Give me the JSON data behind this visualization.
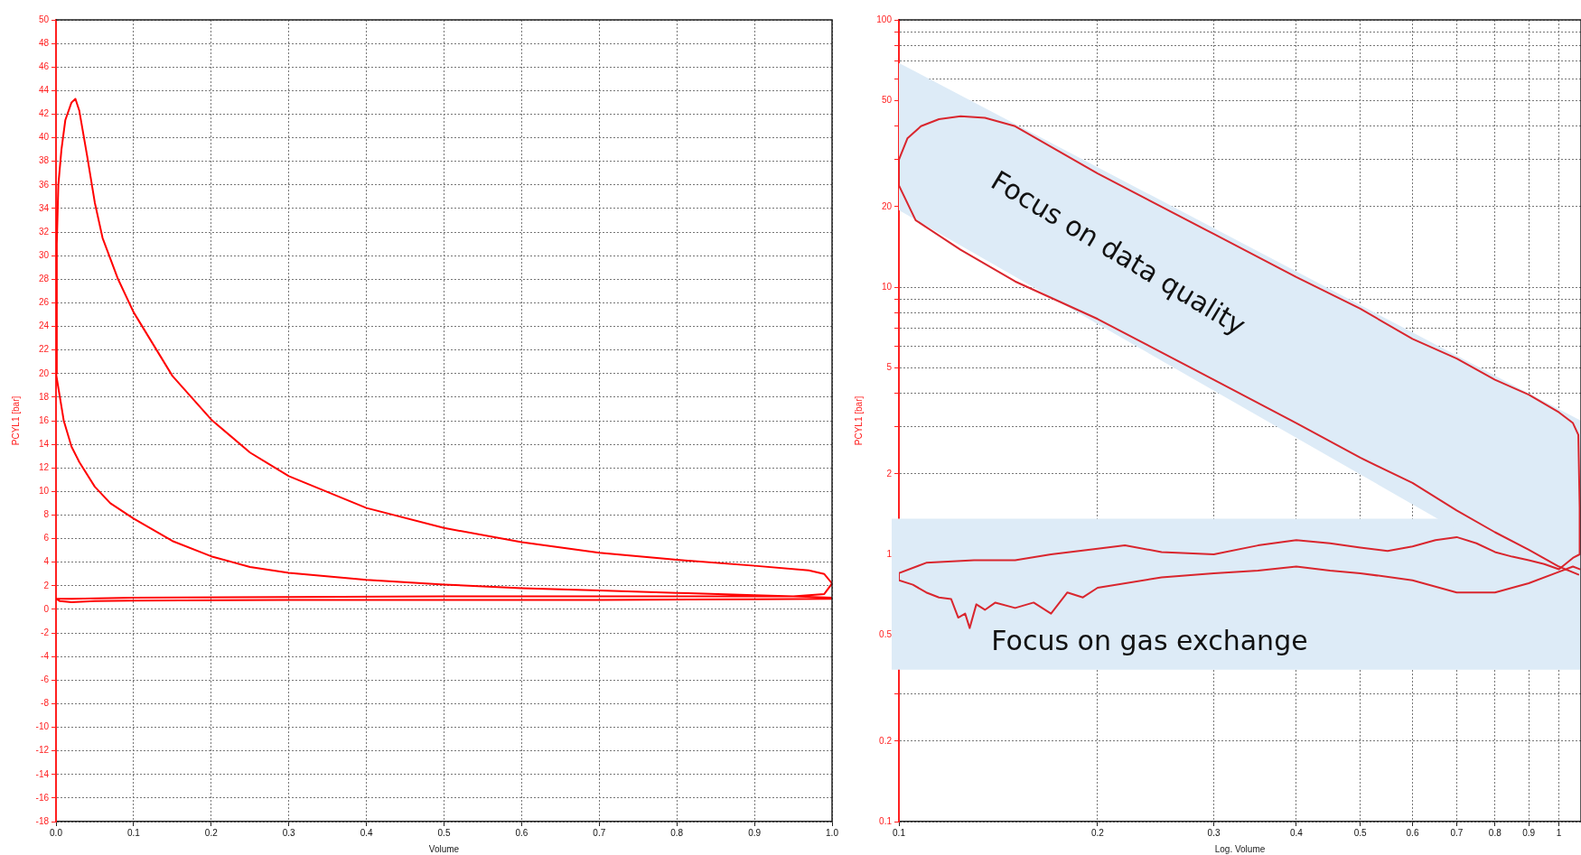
{
  "chart_data": [
    {
      "type": "line",
      "xlabel": "Volume",
      "ylabel": "PCYL1 [bar]",
      "xlim": [
        0,
        1
      ],
      "xticks": [
        {
          "value": 0,
          "label": "0.0"
        },
        0.1,
        0.2,
        0.3,
        0.4,
        0.5,
        0.6,
        0.7,
        0.8,
        0.9,
        {
          "value": 1,
          "label": "1.0"
        }
      ],
      "ylim": [
        -18,
        50
      ],
      "yticks": [
        -18,
        -16,
        -14,
        -12,
        -10,
        -8,
        -6,
        -4,
        -2,
        0,
        2,
        4,
        6,
        8,
        10,
        12,
        14,
        16,
        18,
        20,
        22,
        24,
        26,
        28,
        30,
        32,
        34,
        36,
        38,
        40,
        42,
        44,
        46,
        48,
        50
      ],
      "grid": true,
      "line_style": "solid",
      "series": [
        {
          "color": "#ff0000",
          "x": [
            1.0,
            0.95,
            0.9,
            0.8,
            0.7,
            0.6,
            0.5,
            0.4,
            0.3,
            0.25,
            0.2,
            0.15,
            0.1,
            0.07,
            0.05,
            0.03,
            0.02,
            0.01,
            0.005,
            0,
            0.001,
            0.003,
            0.007,
            0.012,
            0.02,
            0.025,
            0.03,
            0.04,
            0.05,
            0.06,
            0.08,
            0.1,
            0.15,
            0.2,
            0.25,
            0.3,
            0.4,
            0.5,
            0.6,
            0.7,
            0.8,
            0.9,
            0.97,
            0.99,
            1.0,
            0.99,
            0.95,
            0.9,
            0.7,
            0.5,
            0.3,
            0.1,
            0.02,
            0,
            0.005,
            0.02,
            0.05,
            0.1,
            0.3,
            0.5,
            0.7,
            0.9,
            1.0
          ],
          "values": [
            1.0,
            1.1,
            1.2,
            1.4,
            1.6,
            1.8,
            2.1,
            2.5,
            3.1,
            3.6,
            4.5,
            5.8,
            7.7,
            9,
            10.4,
            12.5,
            13.8,
            16,
            18,
            20,
            31,
            36,
            39,
            41.5,
            43,
            43.3,
            42.3,
            38.5,
            34.5,
            31.5,
            28,
            25.2,
            19.8,
            16.1,
            13.3,
            11.3,
            8.6,
            6.9,
            5.7,
            4.8,
            4.2,
            3.7,
            3.3,
            3.0,
            2.2,
            1.3,
            1.1,
            1.1,
            1.1,
            1.1,
            1.05,
            1.0,
            0.9,
            0.9,
            0.7,
            0.6,
            0.7,
            0.75,
            0.8,
            0.8,
            0.8,
            0.85,
            0.9
          ]
        }
      ]
    },
    {
      "type": "line",
      "xlabel": "Log. Volume",
      "ylabel": "PCYL1 [bar]",
      "log": "xy",
      "xlim": [
        0.1,
        1.08
      ],
      "xticks": [
        0.1,
        0.2,
        0.3,
        0.4,
        0.5,
        0.6,
        0.7,
        0.8,
        0.9,
        1
      ],
      "ylim": [
        0.1,
        100
      ],
      "yticks": [
        0.1,
        0.2,
        {
          "value": 0.3,
          "label": null
        },
        {
          "value": 0.4,
          "label": null
        },
        0.5,
        {
          "value": 0.6,
          "label": null
        },
        {
          "value": 0.7,
          "label": null
        },
        {
          "value": 0.8,
          "label": null
        },
        {
          "value": 0.9,
          "label": null
        },
        1,
        2,
        {
          "value": 3,
          "label": null
        },
        {
          "value": 4,
          "label": null
        },
        5,
        {
          "value": 6,
          "label": null
        },
        {
          "value": 7,
          "label": null
        },
        {
          "value": 8,
          "label": null
        },
        {
          "value": 9,
          "label": null
        },
        10,
        20,
        {
          "value": 30,
          "label": null
        },
        {
          "value": 40,
          "label": null
        },
        50,
        {
          "value": 60,
          "label": null
        },
        {
          "value": 70,
          "label": null
        },
        {
          "value": 80,
          "label": null
        },
        {
          "value": 90,
          "label": null
        },
        100
      ],
      "grid": true,
      "line_style": "solid",
      "bands": [
        {
          "axis": "y",
          "from": 0.37,
          "to": 1.36,
          "label": "Focus on gas exchange",
          "color": "#ddebf7"
        }
      ],
      "annotations": [
        "Focus on data quality"
      ],
      "series": [
        {
          "color": "#d9262e",
          "x": [
            1.07,
            1.0,
            0.9,
            0.8,
            0.7,
            0.6,
            0.5,
            0.4,
            0.3,
            0.2,
            0.15,
            0.124,
            0.106,
            0.1,
            0.1,
            0.103,
            0.108,
            0.115,
            0.124,
            0.135,
            0.15,
            0.2,
            0.3,
            0.4,
            0.5,
            0.6,
            0.7,
            0.8,
            0.9,
            1.0,
            1.05,
            1.07,
            1.075,
            1.075,
            1.05,
            1.0,
            0.95,
            0.9,
            0.85,
            0.8,
            0.75,
            0.7,
            0.65,
            0.6,
            0.55,
            0.5,
            0.45,
            0.4,
            0.35,
            0.3,
            0.25,
            0.22,
            0.2,
            0.17,
            0.15,
            0.13,
            0.11,
            0.1,
            0.1,
            0.105,
            0.11,
            0.115,
            0.12,
            0.123,
            0.126,
            0.128,
            0.131,
            0.135,
            0.14,
            0.15,
            0.16,
            0.17,
            0.18,
            0.19,
            0.2,
            0.25,
            0.3,
            0.35,
            0.4,
            0.45,
            0.5,
            0.6,
            0.7,
            0.8,
            0.9,
            1.0,
            1.05,
            1.075
          ],
          "values": [
            0.84,
            0.9,
            1.04,
            1.21,
            1.46,
            1.85,
            2.3,
            3.1,
            4.5,
            7.6,
            10.5,
            13.8,
            17.8,
            24,
            30,
            36,
            40,
            42.5,
            43.6,
            43,
            40,
            26.6,
            15.8,
            10.9,
            8.3,
            6.4,
            5.4,
            4.5,
            3.96,
            3.4,
            3.1,
            2.8,
            1.5,
            1.0,
            0.97,
            0.88,
            0.92,
            0.95,
            0.98,
            1.02,
            1.1,
            1.16,
            1.13,
            1.07,
            1.03,
            1.06,
            1.1,
            1.13,
            1.08,
            1.0,
            1.02,
            1.08,
            1.05,
            1.0,
            0.95,
            0.95,
            0.93,
            0.85,
            0.8,
            0.77,
            0.72,
            0.69,
            0.68,
            0.58,
            0.6,
            0.53,
            0.65,
            0.62,
            0.66,
            0.63,
            0.66,
            0.6,
            0.72,
            0.69,
            0.75,
            0.82,
            0.85,
            0.87,
            0.9,
            0.87,
            0.85,
            0.8,
            0.72,
            0.72,
            0.78,
            0.86,
            0.9,
            0.88
          ]
        },
        {
          "color": "#ddebf7",
          "x": [
            0.1,
            1.08
          ],
          "values": [
            null,
            null
          ],
          "lower": [
            19.4,
            0.67
          ],
          "upper": [
            69,
            3.16
          ]
        }
      ]
    }
  ]
}
